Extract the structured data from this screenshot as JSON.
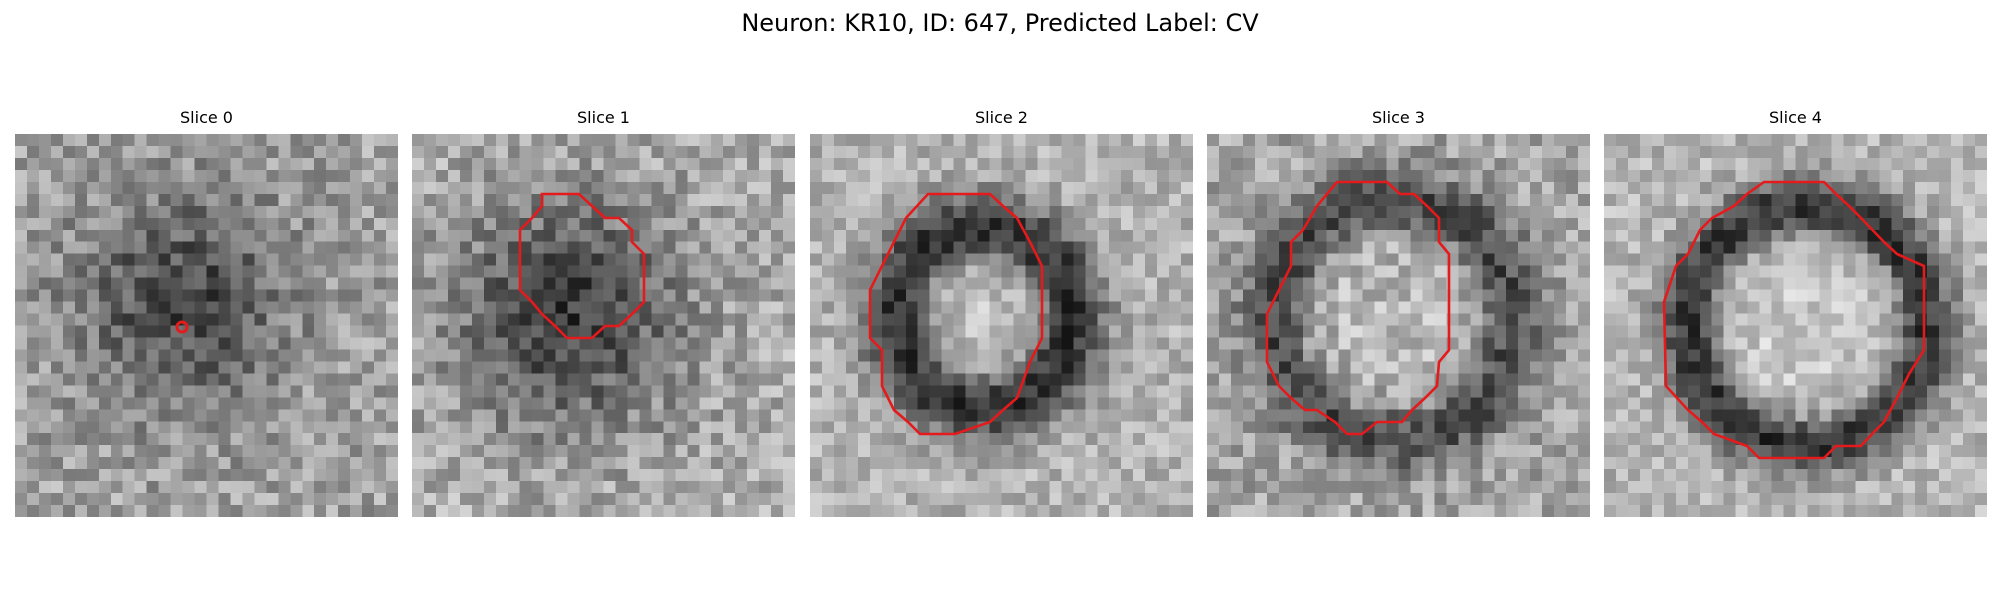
{
  "figure": {
    "title": "Neuron: KR10, ID: 647, Predicted Label: CV"
  },
  "colors": {
    "contour": "#e41a1c",
    "background": "#ffffff"
  },
  "panels": [
    {
      "title": "Slice 0",
      "kind": "point"
    },
    {
      "title": "Slice 1",
      "kind": "contour"
    },
    {
      "title": "Slice 2",
      "kind": "contour"
    },
    {
      "title": "Slice 3",
      "kind": "contour"
    },
    {
      "title": "Slice 4",
      "kind": "contour"
    }
  ]
}
